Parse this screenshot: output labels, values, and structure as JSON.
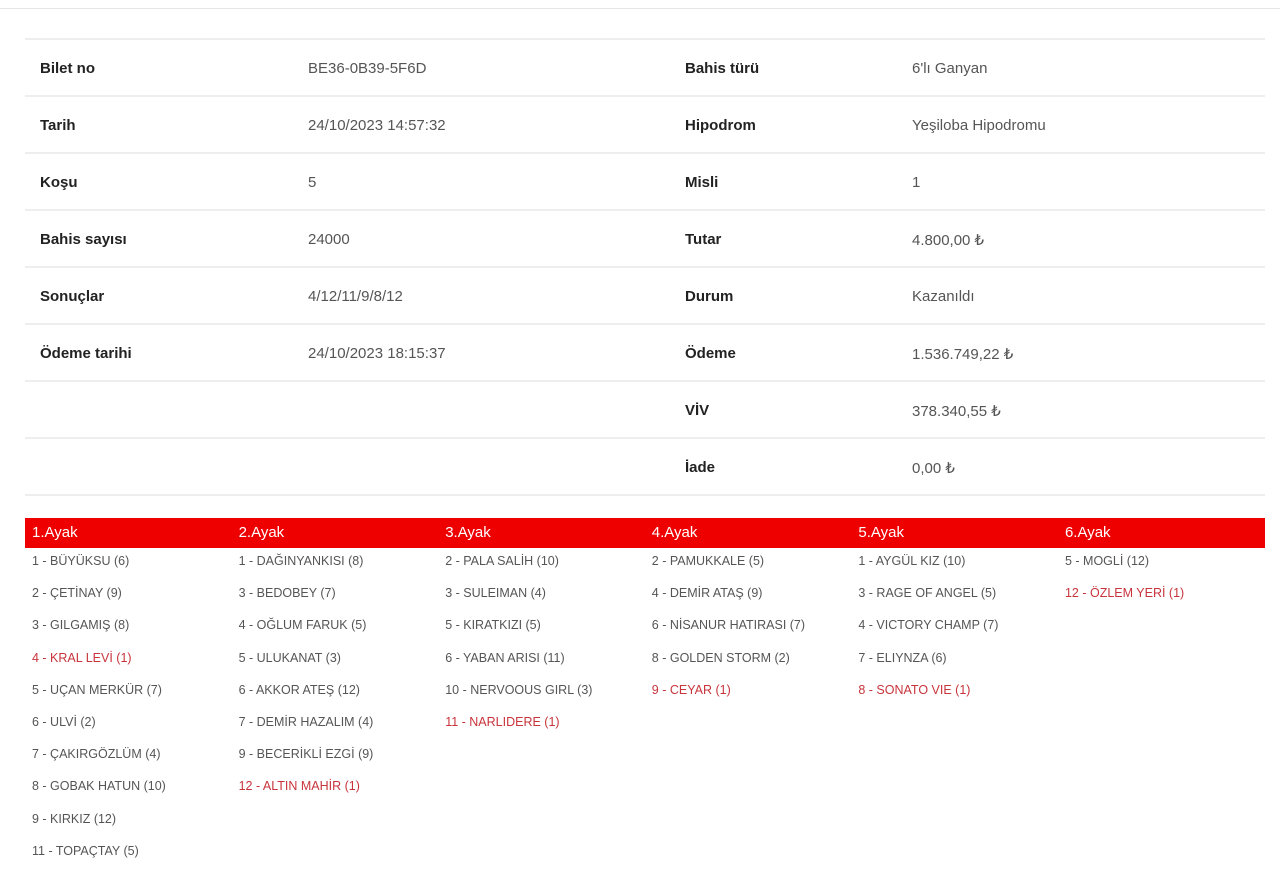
{
  "ticket": {
    "rows": [
      {
        "label": "Bilet no",
        "value": "BE36-0B39-5F6D",
        "label2": "Bahis türü",
        "value2": "6'lı Ganyan"
      },
      {
        "label": "Tarih",
        "value": "24/10/2023 14:57:32",
        "label2": "Hipodrom",
        "value2": "Yeşiloba Hipodromu"
      },
      {
        "label": "Koşu",
        "value": "5",
        "label2": "Misli",
        "value2": "1"
      },
      {
        "label": "Bahis sayısı",
        "value": "24000",
        "label2": "Tutar",
        "value2": "4.800,00 ₺"
      },
      {
        "label": "Sonuçlar",
        "value": "4/12/11/9/8/12",
        "label2": "Durum",
        "value2": "Kazanıldı"
      },
      {
        "label": "Ödeme tarihi",
        "value": "24/10/2023 18:15:37",
        "label2": "Ödeme",
        "value2": "1.536.749,22 ₺"
      },
      {
        "label": "",
        "value": "",
        "label2": "VİV",
        "value2": "378.340,55 ₺"
      },
      {
        "label": "",
        "value": "",
        "label2": "İade",
        "value2": "0,00 ₺"
      }
    ]
  },
  "accent_color": "#ee0000",
  "winner_color": "#c8343c",
  "legs": [
    {
      "title": "1.Ayak",
      "horses": [
        {
          "t": "1 - BÜYÜKSU (6)"
        },
        {
          "t": "2 - ÇETİNAY (9)"
        },
        {
          "t": "3 - GILGAMIŞ (8)"
        },
        {
          "t": "4 - KRAL LEVİ (1)",
          "win": true
        },
        {
          "t": "5 - UÇAN MERKÜR (7)"
        },
        {
          "t": "6 - ULVİ (2)"
        },
        {
          "t": "7 - ÇAKIRGÖZLÜM (4)"
        },
        {
          "t": "8 - GOBAK HATUN (10)"
        },
        {
          "t": "9 - KIRKIZ (12)"
        },
        {
          "t": "11 - TOPAÇTAY (5)"
        }
      ]
    },
    {
      "title": "2.Ayak",
      "horses": [
        {
          "t": "1 - DAĞINYANKISI (8)"
        },
        {
          "t": "3 - BEDOBEY (7)"
        },
        {
          "t": "4 - OĞLUM FARUK (5)"
        },
        {
          "t": "5 - ULUKANAT (3)"
        },
        {
          "t": "6 - AKKOR ATEŞ (12)"
        },
        {
          "t": "7 - DEMİR HAZALIM (4)"
        },
        {
          "t": "9 - BECERİKLİ EZGİ (9)"
        },
        {
          "t": "12 - ALTIN MAHİR (1)",
          "win": true
        }
      ]
    },
    {
      "title": "3.Ayak",
      "horses": [
        {
          "t": "2 - PALA SALİH (10)"
        },
        {
          "t": "3 - SULEIMAN (4)"
        },
        {
          "t": "5 - KIRATKIZI (5)"
        },
        {
          "t": "6 - YABAN ARISI (11)"
        },
        {
          "t": "10 - NERVOOUS GIRL (3)"
        },
        {
          "t": "11 - NARLIDERE (1)",
          "win": true
        }
      ]
    },
    {
      "title": "4.Ayak",
      "horses": [
        {
          "t": "2 - PAMUKKALE (5)"
        },
        {
          "t": "4 - DEMİR ATAŞ (9)"
        },
        {
          "t": "6 - NİSANUR HATIRASI (7)"
        },
        {
          "t": "8 - GOLDEN STORM (2)"
        },
        {
          "t": "9 - CEYAR (1)",
          "win": true
        }
      ]
    },
    {
      "title": "5.Ayak",
      "horses": [
        {
          "t": "1 - AYGÜL KIZ (10)"
        },
        {
          "t": "3 - RAGE OF ANGEL (5)"
        },
        {
          "t": "4 - VICTORY CHAMP (7)"
        },
        {
          "t": "7 - ELIYNZA (6)"
        },
        {
          "t": "8 - SONATO VIE (1)",
          "win": true
        }
      ]
    },
    {
      "title": "6.Ayak",
      "horses": [
        {
          "t": "5 - MOGLİ (12)"
        },
        {
          "t": "12 - ÖZLEM YERİ (1)",
          "win": true
        }
      ]
    }
  ]
}
